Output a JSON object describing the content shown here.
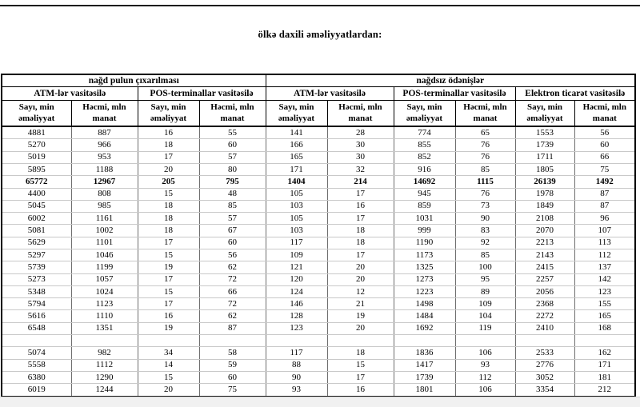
{
  "title": "ölkə daxili əməliyyatlardan:",
  "table": {
    "group_headers": [
      {
        "label": "nağd pulun çıxarılması"
      },
      {
        "label": "nağdsız ödənişlər"
      }
    ],
    "subgroup_headers": [
      {
        "label": "ATM-lər vasitəsilə"
      },
      {
        "label": "POS-terminallar vasitəsilə"
      },
      {
        "label": "ATM-lər vasitəsilə"
      },
      {
        "label": "POS-terminallar vasitəsilə"
      },
      {
        "label": "Elektron ticarət vasitəsilə"
      }
    ],
    "column_headers": [
      "Sayı, min əməliyyat",
      "Həcmi, mln manat",
      "Sayı, min əməliyyat",
      "Həcmi, mln manat",
      "Sayı, min əməliyyat",
      "Həcmi, mln manat",
      "Sayı, min əməliyyat",
      "Həcmi, mln manat",
      "Sayı, min əməliyyat",
      "Həcmi, mln manat"
    ],
    "rows": [
      {
        "bold": false,
        "cells": [
          "4881",
          "887",
          "16",
          "55",
          "141",
          "28",
          "774",
          "65",
          "1553",
          "56"
        ]
      },
      {
        "bold": false,
        "cells": [
          "5270",
          "966",
          "18",
          "60",
          "166",
          "30",
          "855",
          "76",
          "1739",
          "60"
        ]
      },
      {
        "bold": false,
        "cells": [
          "5019",
          "953",
          "17",
          "57",
          "165",
          "30",
          "852",
          "76",
          "1711",
          "66"
        ]
      },
      {
        "bold": false,
        "cells": [
          "5895",
          "1188",
          "20",
          "80",
          "171",
          "32",
          "916",
          "85",
          "1805",
          "75"
        ]
      },
      {
        "bold": true,
        "cells": [
          "65772",
          "12967",
          "205",
          "795",
          "1404",
          "214",
          "14692",
          "1115",
          "26139",
          "1492"
        ]
      },
      {
        "bold": false,
        "cells": [
          "4400",
          "808",
          "15",
          "48",
          "105",
          "17",
          "945",
          "76",
          "1978",
          "87"
        ]
      },
      {
        "bold": false,
        "cells": [
          "5045",
          "985",
          "18",
          "85",
          "103",
          "16",
          "859",
          "73",
          "1849",
          "87"
        ]
      },
      {
        "bold": false,
        "cells": [
          "6002",
          "1161",
          "18",
          "57",
          "105",
          "17",
          "1031",
          "90",
          "2108",
          "96"
        ]
      },
      {
        "bold": false,
        "cells": [
          "5081",
          "1002",
          "18",
          "67",
          "103",
          "18",
          "999",
          "83",
          "2070",
          "107"
        ]
      },
      {
        "bold": false,
        "cells": [
          "5629",
          "1101",
          "17",
          "60",
          "117",
          "18",
          "1190",
          "92",
          "2213",
          "113"
        ]
      },
      {
        "bold": false,
        "cells": [
          "5297",
          "1046",
          "15",
          "56",
          "109",
          "17",
          "1173",
          "85",
          "2143",
          "112"
        ]
      },
      {
        "bold": false,
        "cells": [
          "5739",
          "1199",
          "19",
          "62",
          "121",
          "20",
          "1325",
          "100",
          "2415",
          "137"
        ]
      },
      {
        "bold": false,
        "cells": [
          "5273",
          "1057",
          "17",
          "72",
          "120",
          "20",
          "1273",
          "95",
          "2257",
          "142"
        ]
      },
      {
        "bold": false,
        "cells": [
          "5348",
          "1024",
          "15",
          "66",
          "124",
          "12",
          "1223",
          "89",
          "2056",
          "123"
        ]
      },
      {
        "bold": false,
        "cells": [
          "5794",
          "1123",
          "17",
          "72",
          "146",
          "21",
          "1498",
          "109",
          "2368",
          "155"
        ]
      },
      {
        "bold": false,
        "cells": [
          "5616",
          "1110",
          "16",
          "62",
          "128",
          "19",
          "1484",
          "104",
          "2272",
          "165"
        ]
      },
      {
        "bold": false,
        "cells": [
          "6548",
          "1351",
          "19",
          "87",
          "123",
          "20",
          "1692",
          "119",
          "2410",
          "168"
        ]
      },
      {
        "bold": false,
        "cells": [
          "",
          "",
          "",
          "",
          "",
          "",
          "",
          "",
          "",
          ""
        ]
      },
      {
        "bold": false,
        "cells": [
          "5074",
          "982",
          "34",
          "58",
          "117",
          "18",
          "1836",
          "106",
          "2533",
          "162"
        ]
      },
      {
        "bold": false,
        "cells": [
          "5558",
          "1112",
          "14",
          "59",
          "88",
          "15",
          "1417",
          "93",
          "2776",
          "171"
        ]
      },
      {
        "bold": false,
        "cells": [
          "6380",
          "1290",
          "15",
          "60",
          "90",
          "17",
          "1739",
          "112",
          "3052",
          "181"
        ]
      },
      {
        "bold": false,
        "cells": [
          "6019",
          "1244",
          "20",
          "75",
          "93",
          "16",
          "1801",
          "106",
          "3354",
          "212"
        ]
      }
    ]
  },
  "colors": {
    "page_background": "#ffffff",
    "text": "#000000",
    "header_border": "#000000",
    "row_separator": "#c9c9c9",
    "column_separator": "#6e6e6e",
    "bottom_strip": "#f1f1f1",
    "top_rule": "#1c1c1c"
  }
}
